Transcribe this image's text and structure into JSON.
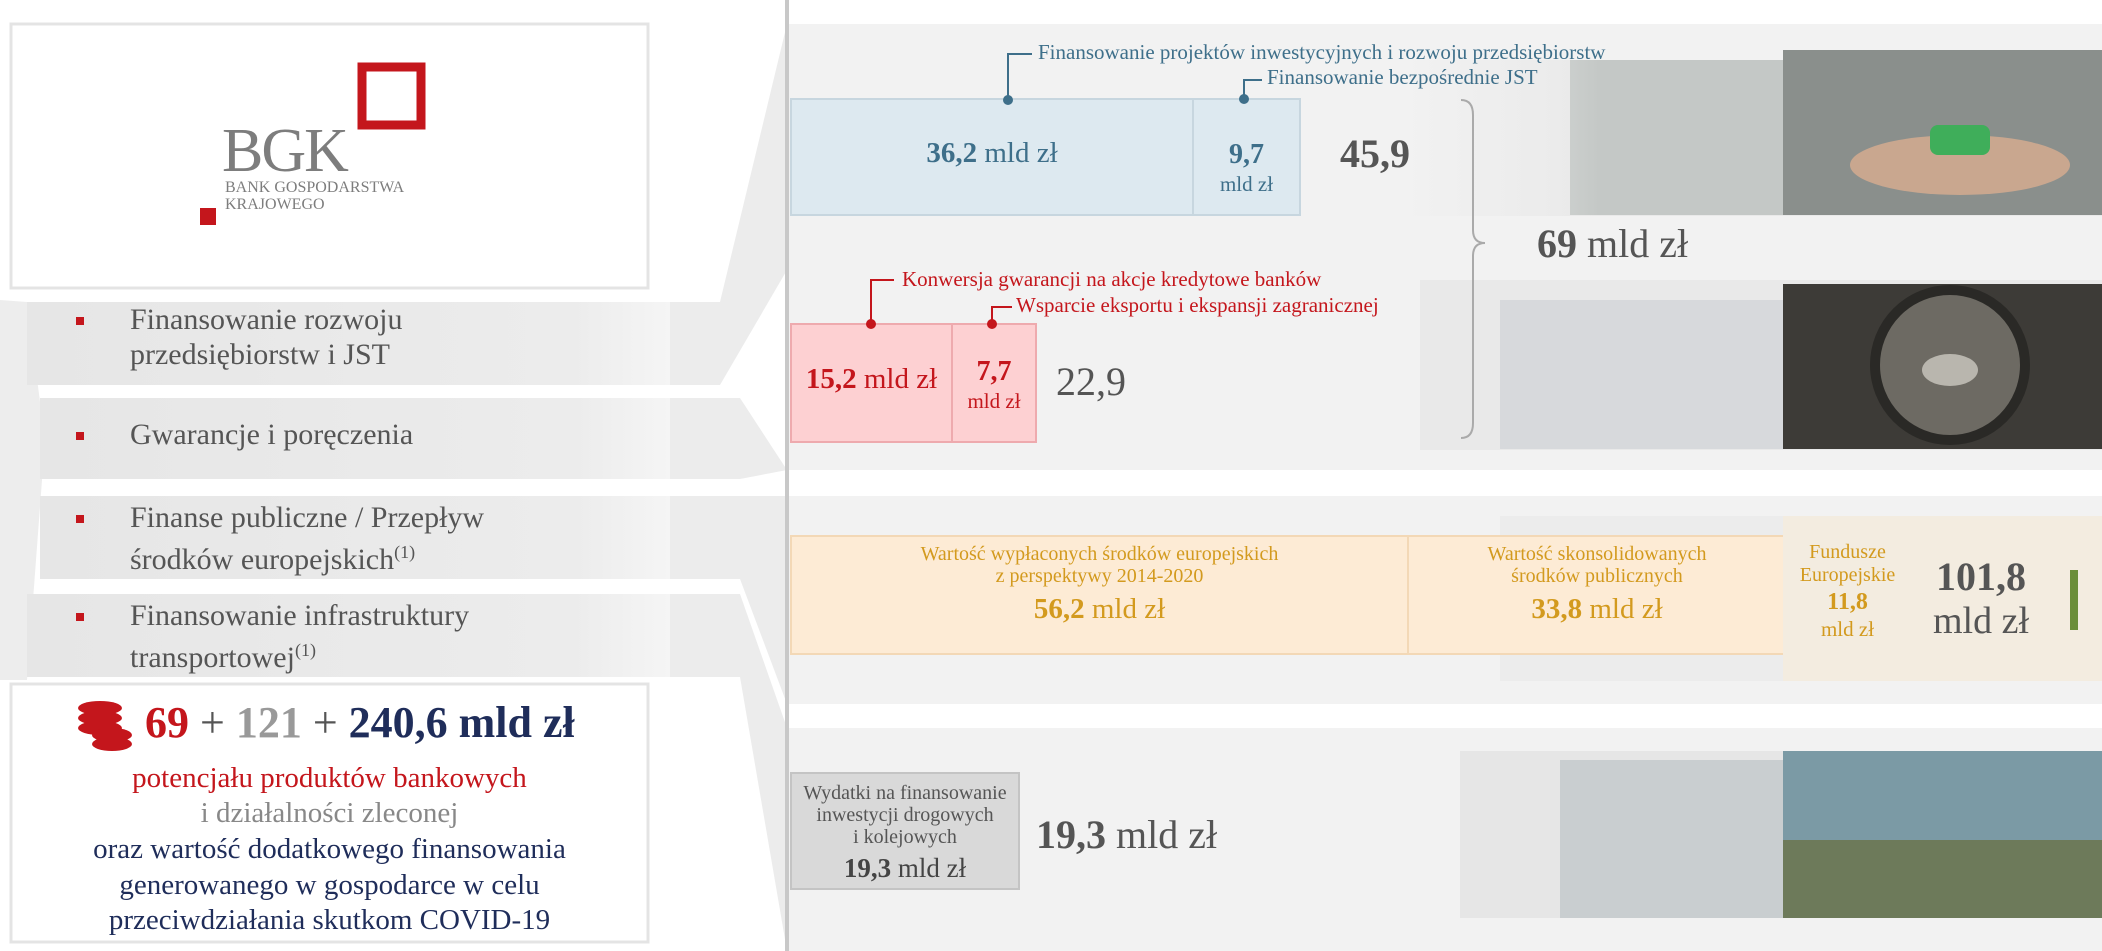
{
  "logo": {
    "name": "BGK",
    "line1": "BANK GOSPODARSTWA",
    "line2": "KRAJOWEGO"
  },
  "menu": [
    {
      "line1": "Finansowanie rozwoju",
      "line2": "przedsiębiorstw i JST"
    },
    {
      "line1": "Gwarancje i poręczenia"
    },
    {
      "line1": "Finanse publiczne / Przepływ",
      "line2": "środków europejskich",
      "note": "(1)"
    },
    {
      "line1": "Finansowanie infrastruktury",
      "line2": "transportowej",
      "note": "(1)"
    }
  ],
  "summary": {
    "part1": "69",
    "plus1": "+",
    "part2": "121",
    "plus2": "+",
    "part3": "240,6 mld zł",
    "lines": [
      "potencjału produktów bankowych",
      "i działalności zleconej",
      "oraz wartość dodatkowego finansowania",
      "generowanego w gospodarce w celu",
      "przeciwdziałania skutkom COVID-19"
    ]
  },
  "investment": {
    "callout1": "Finansowanie projektów  inwestycyjnych i rozwoju przedsiębiorstw",
    "callout2": "Finansowanie bezpośrednie JST",
    "box1": {
      "value": "36,2",
      "unit": "mld zł"
    },
    "box2": {
      "value": "9,7",
      "unit": "mld zł"
    },
    "total": "45,9"
  },
  "combined": {
    "value": "69",
    "unit": "mld zł"
  },
  "guarantees": {
    "callout1": "Konwersja gwarancji na akcje kredytowe banków",
    "callout2": "Wsparcie eksportu i ekspansji zagranicznej",
    "box1": {
      "value": "15,2",
      "unit": "mld zł"
    },
    "box2": {
      "value": "7,7",
      "unit": "mld zł"
    },
    "total": "22,9"
  },
  "public": {
    "box1": {
      "line1": "Wartość wypłaconych środków europejskich",
      "line2": "z perspektywy 2014-2020",
      "value": "56,2",
      "unit": "mld zł"
    },
    "box2": {
      "line1": "Wartość skonsolidowanych",
      "line2": "środków publicznych",
      "value": "33,8",
      "unit": "mld zł"
    },
    "box3": {
      "line1": "Fundusze",
      "line2": "Europejskie",
      "value": "11,8",
      "unit": "mld zł"
    },
    "total": {
      "value": "101,8",
      "unit": "mld zł"
    }
  },
  "transport": {
    "box": {
      "line1": "Wydatki na finansowanie",
      "line2": "inwestycji drogowych",
      "line3": "i kolejowych",
      "value": "19,3",
      "unit": "mld zł"
    },
    "total": {
      "value": "19,3",
      "unit": "mld zł"
    }
  }
}
